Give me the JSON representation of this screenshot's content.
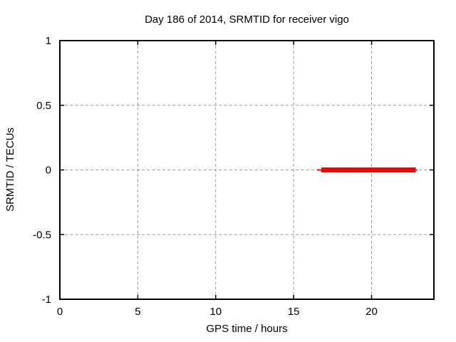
{
  "window": {
    "background": "#ffffff"
  },
  "chart_data": {
    "type": "line",
    "title": "Day 186 of 2014, SRMTID for receiver vigo",
    "xlabel": "GPS time / hours",
    "ylabel": "SRMTID / TECUs",
    "xlim": [
      0,
      24
    ],
    "ylim": [
      -1,
      1
    ],
    "xticks": [
      0,
      5,
      10,
      15,
      20
    ],
    "yticks": [
      1,
      0.5,
      0,
      -0.5,
      -1
    ],
    "xtick_labels": [
      "0",
      "5",
      "10",
      "15",
      "20"
    ],
    "ytick_labels": [
      "1",
      "0.5",
      "0",
      "-0.5",
      "-1"
    ],
    "grid": true,
    "grid_style": "dashed",
    "legend_position": "none",
    "series": [
      {
        "name": "SRMTID",
        "color": "#ff0000",
        "description": "flat segment at 0 TECUs from ~16.5 h to ~22.9 h GPS time",
        "segments": [
          {
            "x1": 16.5,
            "x2": 16.77,
            "y": 0,
            "lw": 2
          },
          {
            "x1": 16.77,
            "x2": 22.83,
            "y": 0,
            "lw": 7
          },
          {
            "x1": 22.83,
            "x2": 22.93,
            "y": 0,
            "lw": 2
          }
        ]
      }
    ],
    "colors": {
      "border": "#000000",
      "grid": "#9a9a9a",
      "text": "#000000",
      "series": "#ff0000"
    }
  }
}
